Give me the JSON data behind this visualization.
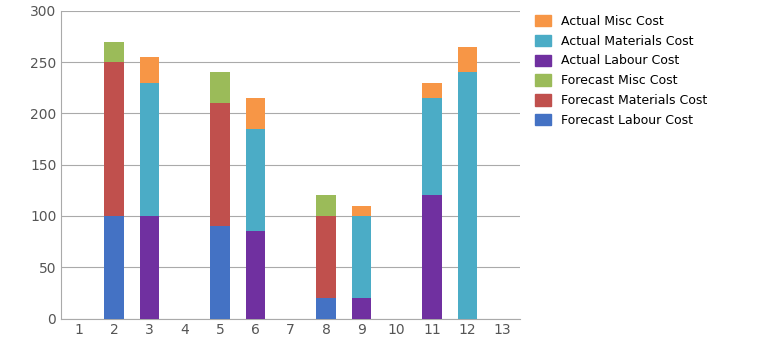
{
  "categories": [
    1,
    2,
    3,
    4,
    5,
    6,
    7,
    8,
    9,
    10,
    11,
    12,
    13
  ],
  "series": {
    "Forecast Labour Cost": [
      0,
      100,
      0,
      0,
      90,
      0,
      0,
      20,
      0,
      0,
      0,
      0,
      0
    ],
    "Forecast Materials Cost": [
      0,
      150,
      0,
      0,
      120,
      0,
      0,
      80,
      0,
      0,
      0,
      0,
      0
    ],
    "Forecast Misc Cost": [
      0,
      20,
      0,
      0,
      30,
      0,
      0,
      20,
      0,
      0,
      0,
      0,
      0
    ],
    "Actual Labour Cost": [
      0,
      0,
      100,
      0,
      0,
      85,
      0,
      0,
      20,
      0,
      120,
      0,
      0
    ],
    "Actual Materials Cost": [
      0,
      0,
      130,
      0,
      0,
      100,
      0,
      0,
      80,
      0,
      95,
      240,
      0
    ],
    "Actual Misc Cost": [
      0,
      0,
      25,
      0,
      0,
      30,
      0,
      0,
      10,
      0,
      15,
      25,
      0
    ]
  },
  "colors": {
    "Forecast Labour Cost": "#4472C4",
    "Forecast Materials Cost": "#C0504D",
    "Forecast Misc Cost": "#9BBB59",
    "Actual Labour Cost": "#7030A0",
    "Actual Materials Cost": "#4BACC6",
    "Actual Misc Cost": "#F79646"
  },
  "legend_order": [
    "Actual Misc Cost",
    "Actual Materials Cost",
    "Actual Labour Cost",
    "Forecast Misc Cost",
    "Forecast Materials Cost",
    "Forecast Labour Cost"
  ],
  "ylim": [
    0,
    300
  ],
  "yticks": [
    0,
    50,
    100,
    150,
    200,
    250,
    300
  ],
  "background_color": "#ffffff",
  "grid_color": "#aaaaaa",
  "bar_width": 0.55,
  "figsize": [
    7.65,
    3.62
  ],
  "dpi": 100
}
